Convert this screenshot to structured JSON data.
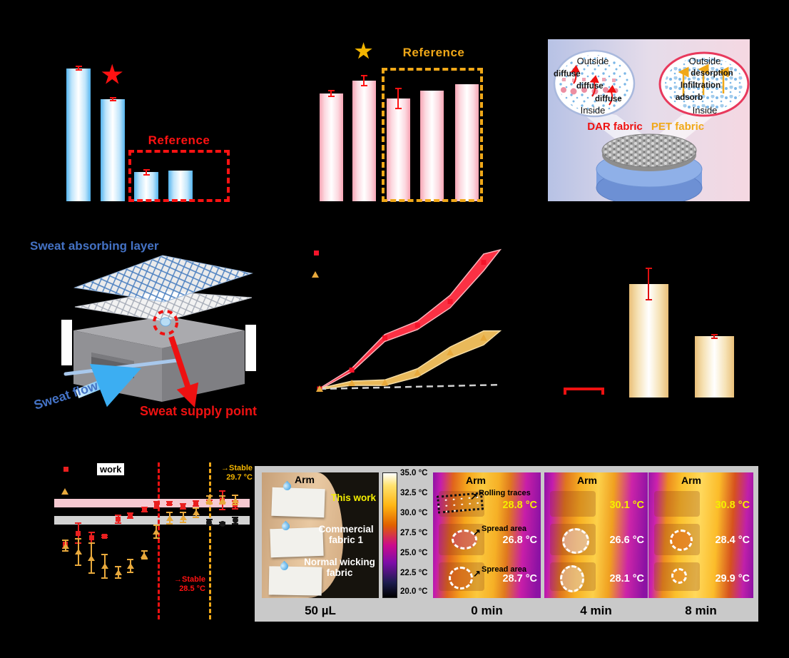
{
  "icons": {
    "star": "★",
    "right_arrow": "→",
    "up_right_arrow": "↗"
  },
  "panels": {
    "a": {
      "reference_label": "Reference",
      "accent": "#ff1212",
      "bar_color": "#54b4ee"
    },
    "b": {
      "reference_label": "Reference",
      "accent": "#f0a818",
      "bar_color": "#f7a4b4"
    },
    "c": {
      "left_bubble": {
        "top": "Outside",
        "bottom": "Inside",
        "labels": [
          "diffuse",
          "diffuse",
          "diffuse"
        ],
        "caption": "DAR fabric",
        "caption_color": "#ee1111"
      },
      "right_bubble": {
        "top": "Outside",
        "bottom": "Inside",
        "labels": [
          "desorption",
          "Infiltration",
          "adsorb"
        ],
        "caption": "PET fabric",
        "caption_color": "#f0a818"
      }
    },
    "d": {
      "absorbing_label": "Sweat absorbing layer",
      "flow_label": "Sweat flow",
      "supply_label": "Sweat supply point"
    },
    "g": {
      "legend_label": "work",
      "stable_top": {
        "label": "Stable",
        "value": "29.7 °C",
        "color": "#f2b400"
      },
      "stable_bottom": {
        "label": "Stable",
        "value": "28.5 °C",
        "color": "#ff1212"
      }
    }
  },
  "thermal": {
    "background": "#c9c9c9",
    "photo": {
      "arm_label": "Arm",
      "sample_labels": [
        "This work",
        "Commercial fabric 1",
        "Normal wicking fabric"
      ],
      "sample_colors": [
        "#f5ef00",
        "#ffffff",
        "#ffffff"
      ],
      "caption": "50 µL"
    },
    "colorbar": {
      "labels": [
        "35.0 °C",
        "32.5 °C",
        "30.0 °C",
        "27.5 °C",
        "25.0 °C",
        "22.5 °C",
        "20.0 °C"
      ]
    },
    "frames": [
      {
        "caption": "0 min",
        "arm_label": "Arm",
        "annotations": [
          "Rolling traces",
          "Spread area",
          "Spread area"
        ],
        "readings": [
          "28.8 °C",
          "26.8 °C",
          "28.7 °C"
        ]
      },
      {
        "caption": "4 min",
        "arm_label": "Arm",
        "readings": [
          "30.1 °C",
          "26.6 °C",
          "28.1 °C"
        ]
      },
      {
        "caption": "8 min",
        "arm_label": "Arm",
        "readings": [
          "30.8 °C",
          "28.4 °C",
          "29.9 °C"
        ]
      }
    ]
  },
  "chart_data": [
    {
      "id": "a",
      "type": "bar",
      "title": "",
      "categories": [
        "",
        "",
        "",
        ""
      ],
      "values": [
        0.82,
        0.63,
        0.18,
        0.19
      ],
      "errors": [
        0.015,
        0.012,
        0.02,
        0
      ],
      "ylim": [
        0,
        1
      ],
      "bar_color": "#54b4ee",
      "error_color": "#ff1212",
      "star_on_bar": 2,
      "reference_bars": [
        3,
        4
      ],
      "reference_label": "Reference"
    },
    {
      "id": "b",
      "type": "bar",
      "title": "",
      "categories": [
        "",
        "",
        "",
        "",
        ""
      ],
      "values": [
        0.68,
        0.76,
        0.65,
        0.7,
        0.74
      ],
      "errors": [
        0.023,
        0.036,
        0.068,
        0,
        0
      ],
      "ylim": [
        0,
        1
      ],
      "bar_color": "#f7a4b4",
      "error_color": "#ff1212",
      "star_on_bar": 2,
      "reference_bars": [
        3,
        4,
        5
      ],
      "reference_label": "Reference"
    },
    {
      "id": "e",
      "type": "line",
      "x": [
        0,
        0.148,
        0.3,
        0.45,
        0.6,
        0.754
      ],
      "series": [
        {
          "name": "red-series",
          "marker": "square",
          "color": "#f5142a",
          "band": "#fb3144",
          "edge": "#ffb4bc",
          "values": [
            0.005,
            0.14,
            0.37,
            0.46,
            0.63,
            0.91
          ],
          "band_width": [
            0.004,
            0.012,
            0.025,
            0.03,
            0.045,
            0.06
          ],
          "tip": [
            0.83,
            1.0
          ]
        },
        {
          "name": "orange-series",
          "marker": "triangle",
          "color": "#e8a93c",
          "band": "#e9b95a",
          "edge": "#f6dda4",
          "values": [
            0.005,
            0.046,
            0.05,
            0.12,
            0.265,
            0.37
          ],
          "band_width": [
            0.004,
            0.015,
            0.02,
            0.03,
            0.04,
            0.05
          ],
          "tip": [
            0.83,
            0.42
          ]
        }
      ],
      "baseline_series": {
        "color": "#d0d0d0",
        "from": [
          0,
          0.005
        ],
        "to": [
          0.83,
          0.035
        ]
      }
    },
    {
      "id": "f",
      "type": "bar",
      "categories": [
        "",
        "",
        ""
      ],
      "values": [
        0,
        0.768,
        0.415
      ],
      "errors": [
        0,
        0.11,
        0.017
      ],
      "ylim": [
        0,
        1
      ],
      "bar_color": "#e9bf78",
      "error_color": "#e01010",
      "bracket_on_bar": 1
    },
    {
      "id": "g",
      "type": "scatter",
      "x": [
        0.058,
        0.124,
        0.19,
        0.259,
        0.328,
        0.39,
        0.46,
        0.522,
        0.591,
        0.66,
        0.726,
        0.792,
        0.861,
        0.927
      ],
      "series": [
        {
          "name": "red-series",
          "marker": "square",
          "color": "#ea1f1f",
          "values": [
            0.48,
            0.55,
            0.52,
            0.53,
            0.64,
            0.66,
            0.7,
            0.73,
            0.74,
            0.72,
            0.74,
            0.75,
            0.76,
            0.73
          ],
          "errors": [
            0.03,
            0.07,
            0.04,
            0.012,
            0.03,
            0.02,
            0.02,
            0.025,
            0.015,
            0.02,
            0.02,
            0.015,
            0.065,
            0.03
          ]
        },
        {
          "name": "orange-series",
          "marker": "triangle",
          "color": "#e8a93c",
          "values": [
            0.47,
            0.43,
            0.39,
            0.34,
            0.3,
            0.34,
            0.41,
            0.56,
            0.645,
            0.65,
            0.68,
            0.76,
            0.76,
            0.76
          ],
          "errors": [
            0.04,
            0.09,
            0.1,
            0.08,
            0.04,
            0.045,
            0.03,
            0.045,
            0.04,
            0.035,
            0.035,
            0.03,
            0.03,
            0.035
          ]
        },
        {
          "name": "black-series",
          "marker": "circle",
          "color": "#161616",
          "x": [
            0.792,
            0.861,
            0.927
          ],
          "values": [
            0.62,
            0.61,
            0.63
          ],
          "errors": [
            0.02,
            0.012,
            0.025
          ]
        }
      ],
      "bands": [
        {
          "color": "#f6c9d1",
          "from": 0.714,
          "to": 0.768
        },
        {
          "color": "#d2d2d2",
          "from": 0.605,
          "to": 0.66
        }
      ],
      "vlines": [
        {
          "color": "#ee1111",
          "x": 0.533
        },
        {
          "color": "#f0a818",
          "x": 0.796
        }
      ]
    }
  ]
}
